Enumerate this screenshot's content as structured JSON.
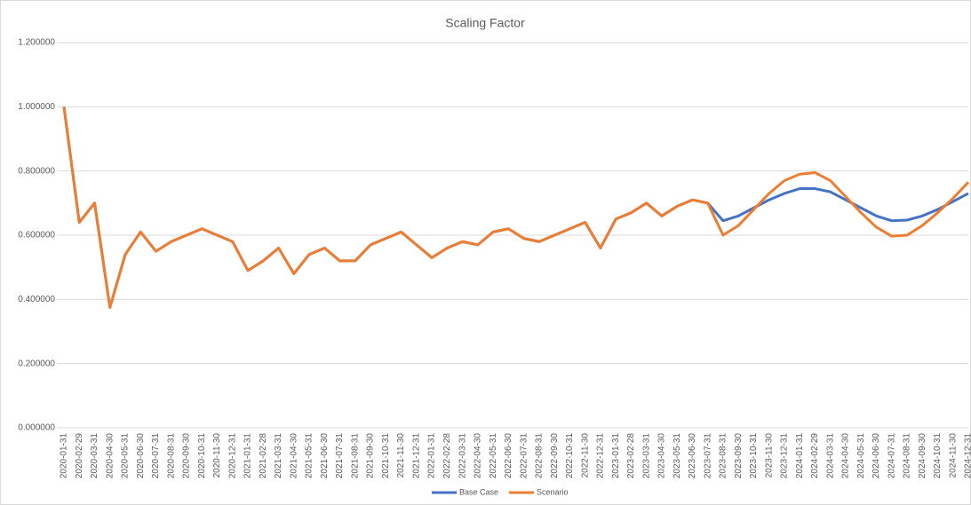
{
  "chart_data": {
    "type": "line",
    "title": "Scaling Factor",
    "categories": [
      "2020-01-31",
      "2020-02-29",
      "2020-03-31",
      "2020-04-30",
      "2020-05-31",
      "2020-06-30",
      "2020-07-31",
      "2020-08-31",
      "2020-09-30",
      "2020-10-31",
      "2020-11-30",
      "2020-12-31",
      "2021-01-31",
      "2021-02-28",
      "2021-03-31",
      "2021-04-30",
      "2021-05-31",
      "2021-06-30",
      "2021-07-31",
      "2021-08-31",
      "2021-09-30",
      "2021-10-31",
      "2021-11-30",
      "2021-12-31",
      "2022-01-31",
      "2022-02-28",
      "2022-03-31",
      "2022-04-30",
      "2022-05-31",
      "2022-06-30",
      "2022-07-31",
      "2022-08-31",
      "2022-09-30",
      "2022-10-31",
      "2022-11-30",
      "2022-12-31",
      "2023-01-31",
      "2023-02-28",
      "2023-03-31",
      "2023-04-30",
      "2023-05-31",
      "2023-06-30",
      "2023-07-31",
      "2023-08-31",
      "2023-09-30",
      "2023-10-31",
      "2023-11-30",
      "2023-12-31",
      "2024-01-31",
      "2024-02-29",
      "2024-03-31",
      "2024-04-30",
      "2024-05-31",
      "2024-06-30",
      "2024-07-31",
      "2024-08-31",
      "2024-09-30",
      "2024-10-31",
      "2024-11-30",
      "2024-12-31"
    ],
    "series": [
      {
        "name": "Base Case",
        "color": "#4472c4",
        "values": [
          1.0,
          0.64,
          0.7,
          0.375,
          0.54,
          0.61,
          0.55,
          0.58,
          0.6,
          0.62,
          0.6,
          0.58,
          0.49,
          0.52,
          0.56,
          0.48,
          0.54,
          0.56,
          0.52,
          0.52,
          0.57,
          0.59,
          0.61,
          0.57,
          0.53,
          0.56,
          0.58,
          0.57,
          0.61,
          0.62,
          0.59,
          0.58,
          0.6,
          0.62,
          0.64,
          0.56,
          0.65,
          0.67,
          0.7,
          0.66,
          0.69,
          0.71,
          0.7,
          0.645,
          0.66,
          0.685,
          0.71,
          0.73,
          0.745,
          0.745,
          0.735,
          0.71,
          0.685,
          0.66,
          0.645,
          0.647,
          0.66,
          0.68,
          0.705,
          0.73
        ]
      },
      {
        "name": "Scenario",
        "color": "#ed7d31",
        "values": [
          1.0,
          0.64,
          0.7,
          0.375,
          0.54,
          0.61,
          0.55,
          0.58,
          0.6,
          0.62,
          0.6,
          0.58,
          0.49,
          0.52,
          0.56,
          0.48,
          0.54,
          0.56,
          0.52,
          0.52,
          0.57,
          0.59,
          0.61,
          0.57,
          0.53,
          0.56,
          0.58,
          0.57,
          0.61,
          0.62,
          0.59,
          0.58,
          0.6,
          0.62,
          0.64,
          0.56,
          0.65,
          0.67,
          0.7,
          0.66,
          0.69,
          0.71,
          0.7,
          0.6,
          0.63,
          0.68,
          0.73,
          0.77,
          0.79,
          0.795,
          0.77,
          0.72,
          0.67,
          0.625,
          0.597,
          0.6,
          0.63,
          0.67,
          0.715,
          0.765
        ]
      }
    ],
    "ylim": [
      0,
      1.2
    ],
    "yticks": [
      {
        "value": 0,
        "label": "0.000000"
      },
      {
        "value": 0.2,
        "label": "0.200000"
      },
      {
        "value": 0.4,
        "label": "0.400000"
      },
      {
        "value": 0.6,
        "label": "0.600000"
      },
      {
        "value": 0.8,
        "label": "0.800000"
      },
      {
        "value": 1.0,
        "label": "1.000000"
      },
      {
        "value": 1.2,
        "label": "1.200000"
      }
    ],
    "grid": true,
    "legend": "bottom"
  }
}
